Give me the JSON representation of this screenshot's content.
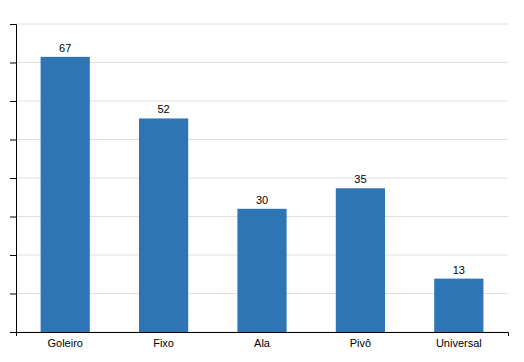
{
  "chart_data": {
    "type": "bar",
    "categories": [
      "Goleiro",
      "Fixo",
      "Ala",
      "Pivô",
      "Universal"
    ],
    "values": [
      67,
      52,
      30,
      35,
      13
    ],
    "color": "#2E75B6",
    "ylim": [
      0,
      75
    ],
    "yticks": [
      0,
      9.375,
      18.75,
      28.125,
      37.5,
      46.875,
      56.25,
      65.625,
      75
    ],
    "grid": true,
    "data_labels": true,
    "tick_labels": "x"
  }
}
